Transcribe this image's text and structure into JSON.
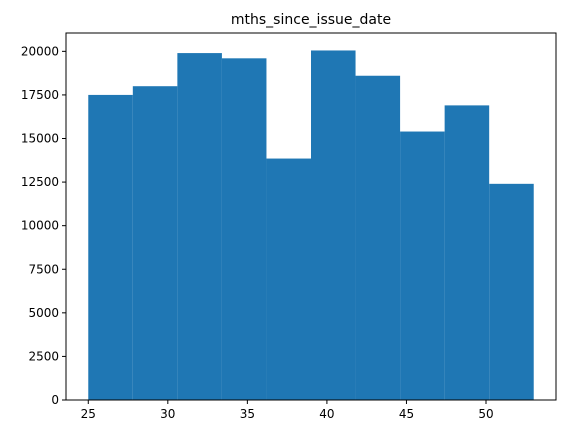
{
  "chart_data": {
    "type": "bar",
    "title": "mths_since_issue_date",
    "xlabel": "",
    "ylabel": "",
    "bins": [
      {
        "x0": 25.0,
        "x1": 27.8,
        "value": 17500
      },
      {
        "x0": 27.8,
        "x1": 30.6,
        "value": 18000
      },
      {
        "x0": 30.6,
        "x1": 33.4,
        "value": 19900
      },
      {
        "x0": 33.4,
        "x1": 36.2,
        "value": 19600
      },
      {
        "x0": 36.2,
        "x1": 39.0,
        "value": 13850
      },
      {
        "x0": 39.0,
        "x1": 41.8,
        "value": 20050
      },
      {
        "x0": 41.8,
        "x1": 44.6,
        "value": 18600
      },
      {
        "x0": 44.6,
        "x1": 47.4,
        "value": 15400
      },
      {
        "x0": 47.4,
        "x1": 50.2,
        "value": 16900
      },
      {
        "x0": 50.2,
        "x1": 53.0,
        "value": 12400
      }
    ],
    "xlim": [
      23.6,
      54.4
    ],
    "ylim": [
      0,
      21052
    ],
    "xticks": [
      25,
      30,
      35,
      40,
      45,
      50
    ],
    "xtick_labels": [
      "25",
      "30",
      "35",
      "40",
      "45",
      "50"
    ],
    "yticks": [
      0,
      2500,
      5000,
      7500,
      10000,
      12500,
      15000,
      17500,
      20000
    ],
    "ytick_labels": [
      "0",
      "2500",
      "5000",
      "7500",
      "10000",
      "12500",
      "15000",
      "17500",
      "20000"
    ],
    "bar_color": "#1f77b4",
    "grid": false,
    "legend": "none"
  }
}
